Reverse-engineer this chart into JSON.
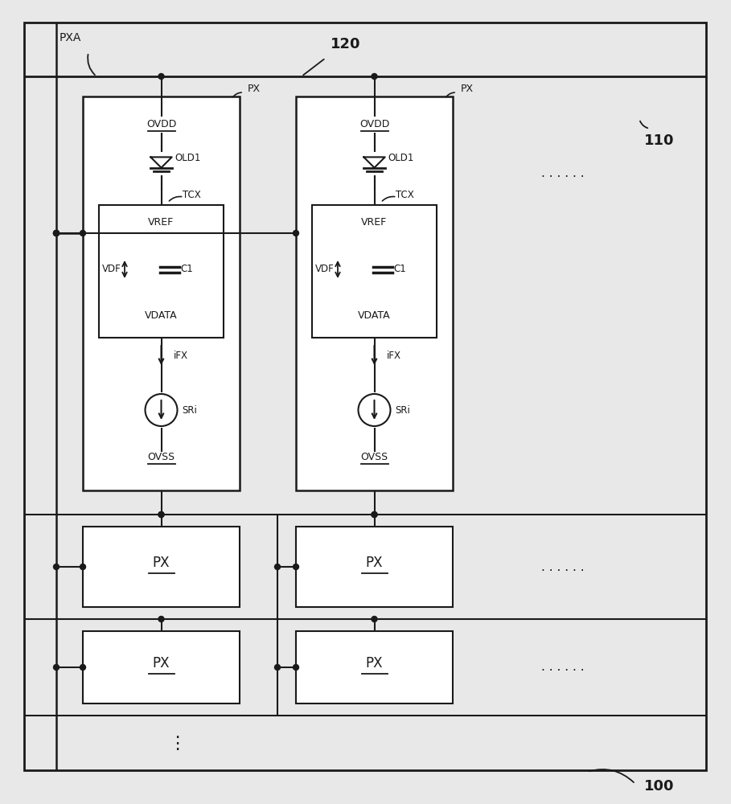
{
  "bg_color": "#e8e8e8",
  "line_color": "#1a1a1a",
  "fill_color": "#ffffff",
  "text_color": "#1a1a1a",
  "label_100": "100",
  "label_110": "110",
  "label_120": "120",
  "label_PXA": "PXA",
  "label_PX": "PX",
  "label_OVDD": "OVDD",
  "label_OLD1": "OLD1",
  "label_TCX": "TCX",
  "label_VREF": "VREF",
  "label_VDF": "VDF",
  "label_C1": "C1",
  "label_VDATA": "VDATA",
  "label_iFX": "iFX",
  "label_SRi": "SRi",
  "label_OVSS": "OVSS",
  "label_PX_box": "PX"
}
